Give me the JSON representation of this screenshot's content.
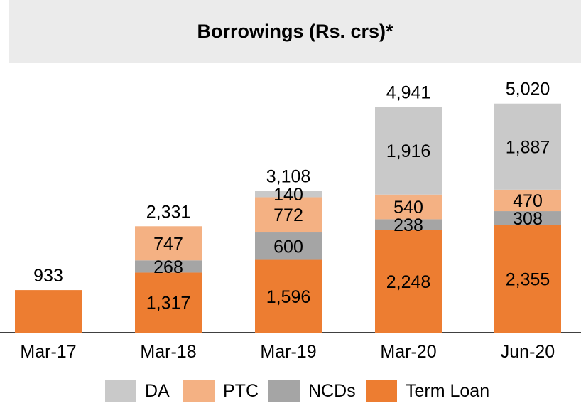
{
  "chart_data": {
    "type": "bar",
    "stacked": true,
    "title": "Borrowings (Rs. crs)*",
    "categories": [
      "Mar-17",
      "Mar-18",
      "Mar-19",
      "Mar-20",
      "Jun-20"
    ],
    "series": [
      {
        "name": "Term Loan",
        "color": "#ed7d31",
        "values": [
          933,
          1317,
          1596,
          2248,
          2355
        ],
        "labels": [
          "",
          "1,317",
          "1,596",
          "2,248",
          "2,355"
        ]
      },
      {
        "name": "NCDs",
        "color": "#a5a5a5",
        "values": [
          0,
          268,
          600,
          238,
          308
        ],
        "labels": [
          "",
          "268",
          "600",
          "238",
          "308"
        ]
      },
      {
        "name": "PTC",
        "color": "#f4b183",
        "values": [
          0,
          747,
          772,
          540,
          470
        ],
        "labels": [
          "",
          "747",
          "772",
          "540",
          "470"
        ]
      },
      {
        "name": "DA",
        "color": "#c9c9c9",
        "values": [
          0,
          0,
          140,
          1916,
          1887
        ],
        "labels": [
          "",
          "",
          "140",
          "1,916",
          "1,887"
        ]
      }
    ],
    "totals": [
      "933",
      "2,331",
      "3,108",
      "4,941",
      "5,020"
    ],
    "legend_order": [
      "DA",
      "PTC",
      "NCDs",
      "Term Loan"
    ],
    "legend_position": "bottom",
    "ylim": [
      0,
      5500
    ],
    "grid": false
  }
}
